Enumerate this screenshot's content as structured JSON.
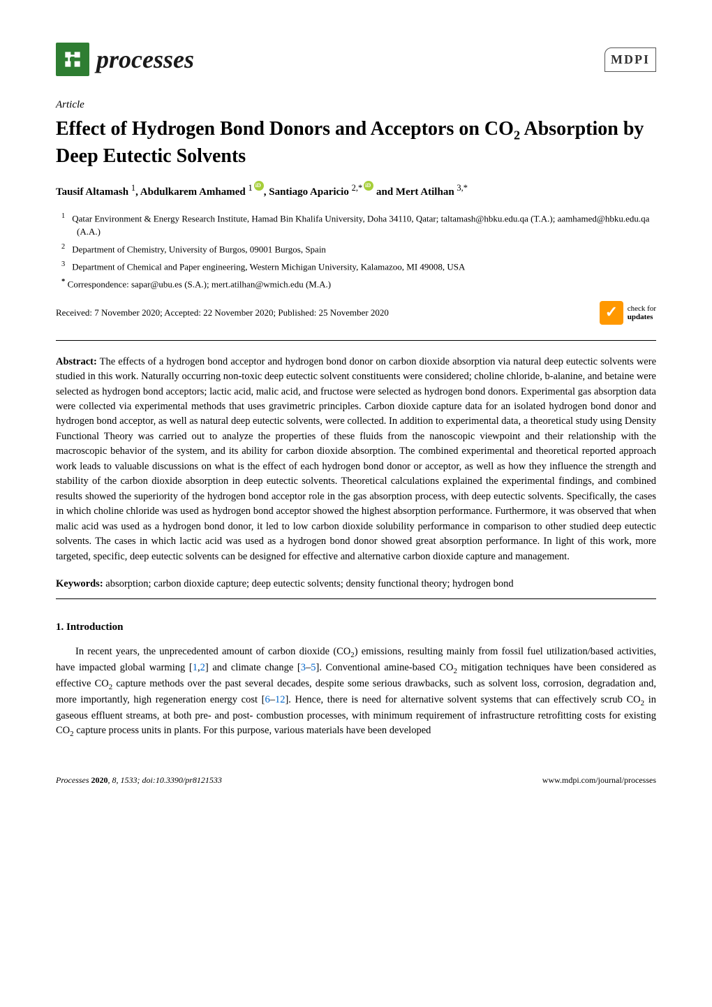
{
  "header": {
    "journal_name": "processes",
    "publisher_logo_text": "MDPI"
  },
  "article": {
    "type": "Article",
    "title_pre": "Effect of Hydrogen Bond Donors and Acceptors on CO",
    "title_sub": "2",
    "title_post": " Absorption by Deep Eutectic Solvents",
    "authors_html_parts": {
      "a1_name": "Tausif Altamash ",
      "a1_sup": "1",
      "sep1": ", ",
      "a2_name": "Abdulkarem Amhamed ",
      "a2_sup": "1",
      "sep2": ", ",
      "a3_name": "Santiago Aparicio ",
      "a3_sup": "2,",
      "a3_star": "*",
      "sep3": " and ",
      "a4_name": "Mert Atilhan ",
      "a4_sup": "3,",
      "a4_star": "*"
    },
    "affiliations": [
      {
        "num": "1",
        "text": "Qatar Environment & Energy Research Institute, Hamad Bin Khalifa University, Doha 34110, Qatar; taltamash@hbku.edu.qa (T.A.); aamhamed@hbku.edu.qa (A.A.)"
      },
      {
        "num": "2",
        "text": "Department of Chemistry, University of Burgos, 09001 Burgos, Spain"
      },
      {
        "num": "3",
        "text": "Department of Chemical and Paper engineering, Western Michigan University, Kalamazoo, MI 49008, USA"
      }
    ],
    "correspondence": {
      "star": "*",
      "text": "Correspondence: sapar@ubu.es (S.A.); mert.atilhan@wmich.edu (M.A.)"
    },
    "dates": "Received: 7 November 2020; Accepted: 22 November 2020; Published: 25 November 2020",
    "check_updates": {
      "line1": "check for",
      "line2": "updates"
    },
    "abstract_label": "Abstract:",
    "abstract_text": " The effects of a hydrogen bond acceptor and hydrogen bond donor on carbon dioxide absorption via natural deep eutectic solvents were studied in this work. Naturally occurring non-toxic deep eutectic solvent constituents were considered; choline chloride, b-alanine, and betaine were selected as hydrogen bond acceptors; lactic acid, malic acid, and fructose were selected as hydrogen bond donors. Experimental gas absorption data were collected via experimental methods that uses gravimetric principles. Carbon dioxide capture data for an isolated hydrogen bond donor and hydrogen bond acceptor, as well as natural deep eutectic solvents, were collected. In addition to experimental data, a theoretical study using Density Functional Theory was carried out to analyze the properties of these fluids from the nanoscopic viewpoint and their relationship with the macroscopic behavior of the system, and its ability for carbon dioxide absorption. The combined experimental and theoretical reported approach work leads to valuable discussions on what is the effect of each hydrogen bond donor or acceptor, as well as how they influence the strength and stability of the carbon dioxide absorption in deep eutectic solvents. Theoretical calculations explained the experimental findings, and combined results showed the superiority of the hydrogen bond acceptor role in the gas absorption process, with deep eutectic solvents. Specifically, the cases in which choline chloride was used as hydrogen bond acceptor showed the highest absorption performance. Furthermore, it was observed that when malic acid was used as a hydrogen bond donor, it led to low carbon dioxide solubility performance in comparison to other studied deep eutectic solvents. The cases in which lactic acid was used as a hydrogen bond donor showed great absorption performance. In light of this work, more targeted, specific, deep eutectic solvents can be designed for effective and alternative carbon dioxide capture and management.",
    "keywords_label": "Keywords:",
    "keywords_text": " absorption; carbon dioxide capture; deep eutectic solvents; density functional theory; hydrogen bond",
    "section1_heading": "1. Introduction",
    "intro_parts": {
      "p1": "In recent years, the unprecedented amount of carbon dioxide (CO",
      "p2": ") emissions, resulting mainly from fossil fuel utilization/based activities, have impacted global warming [",
      "r1": "1",
      "c1": ",",
      "r2": "2",
      "p3": "] and climate change [",
      "r3": "3",
      "dash1": "–",
      "r4": "5",
      "p4": "]. Conventional amine-based CO",
      "p5": " mitigation techniques have been considered as effective CO",
      "p6": " capture methods over the past several decades, despite some serious drawbacks, such as solvent loss, corrosion, degradation and, more importantly, high regeneration energy cost [",
      "r5": "6",
      "dash2": "–",
      "r6": "12",
      "p7": "]. Hence, there is need for alternative solvent systems that can effectively scrub CO",
      "p8": " in gaseous effluent streams, at both pre- and post- combustion processes, with minimum requirement of infrastructure retrofitting costs for existing CO",
      "p9": " capture process units in plants. For this purpose, various materials have been developed"
    }
  },
  "footer": {
    "left_journal": "Processes ",
    "left_year": "2020",
    "left_rest": ", 8, 1533; doi:10.3390/pr8121533",
    "right": "www.mdpi.com/journal/processes"
  },
  "colors": {
    "logo_bg": "#2e7d32",
    "orcid": "#a6ce39",
    "check_updates": "#ff9800",
    "link": "#0066cc",
    "text": "#000000",
    "bg": "#ffffff"
  }
}
